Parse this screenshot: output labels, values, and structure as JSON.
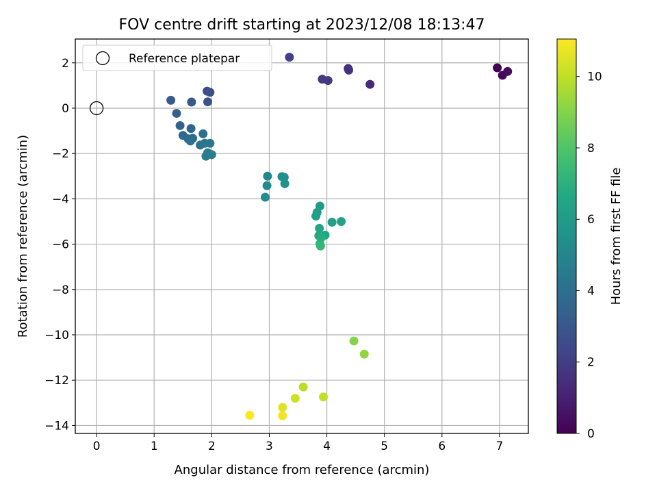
{
  "chart_data": {
    "type": "scatter",
    "title": "FOV centre drift starting at 2023/12/08 18:13:47",
    "xlabel": "Angular distance from reference (arcmin)",
    "ylabel": "Rotation from reference (arcmin)",
    "xlim": [
      -0.37,
      7.5
    ],
    "ylim": [
      -14.35,
      3.05
    ],
    "xticks": [
      0,
      1,
      2,
      3,
      4,
      5,
      6,
      7
    ],
    "yticks": [
      2,
      0,
      -2,
      -4,
      -6,
      -8,
      -10,
      -12,
      -14
    ],
    "grid": true,
    "legend": {
      "placement": "top-left",
      "entries": [
        "Reference platepar"
      ]
    },
    "reference_point": {
      "name": "Reference platepar",
      "x": 0,
      "y": 0,
      "marker": "open-circle"
    },
    "colorbar": {
      "label": "Hours from first FF file",
      "colormap": "viridis",
      "range": [
        0,
        11.05
      ],
      "ticks": [
        0,
        2,
        4,
        6,
        8,
        10
      ]
    },
    "series": [
      {
        "points": [
          {
            "x": 6.96,
            "y": 1.78,
            "c": 0.0
          },
          {
            "x": 7.05,
            "y": 1.45,
            "c": 0.2
          },
          {
            "x": 7.14,
            "y": 1.62,
            "c": 0.4
          },
          {
            "x": 4.75,
            "y": 1.05,
            "c": 1.3
          },
          {
            "x": 4.37,
            "y": 1.75,
            "c": 1.5
          },
          {
            "x": 4.38,
            "y": 1.68,
            "c": 1.6
          },
          {
            "x": 4.02,
            "y": 1.22,
            "c": 1.8
          },
          {
            "x": 3.92,
            "y": 1.28,
            "c": 1.9
          },
          {
            "x": 3.35,
            "y": 2.25,
            "c": 2.1
          },
          {
            "x": 1.92,
            "y": 0.75,
            "c": 2.5
          },
          {
            "x": 1.97,
            "y": 0.7,
            "c": 2.6
          },
          {
            "x": 1.93,
            "y": 0.28,
            "c": 2.8
          },
          {
            "x": 1.65,
            "y": 0.27,
            "c": 3.0
          },
          {
            "x": 1.29,
            "y": 0.35,
            "c": 3.1
          },
          {
            "x": 1.39,
            "y": -0.23,
            "c": 3.3
          },
          {
            "x": 1.45,
            "y": -0.77,
            "c": 3.5
          },
          {
            "x": 1.64,
            "y": -0.9,
            "c": 3.6
          },
          {
            "x": 1.5,
            "y": -1.2,
            "c": 3.7
          },
          {
            "x": 1.59,
            "y": -1.35,
            "c": 3.8
          },
          {
            "x": 1.67,
            "y": -1.33,
            "c": 3.9
          },
          {
            "x": 1.63,
            "y": -1.45,
            "c": 4.0
          },
          {
            "x": 1.85,
            "y": -1.13,
            "c": 4.1
          },
          {
            "x": 1.8,
            "y": -1.63,
            "c": 4.2
          },
          {
            "x": 1.88,
            "y": -1.55,
            "c": 4.3
          },
          {
            "x": 1.97,
            "y": -1.55,
            "c": 4.4
          },
          {
            "x": 1.93,
            "y": -1.97,
            "c": 4.5
          },
          {
            "x": 1.9,
            "y": -2.12,
            "c": 4.6
          },
          {
            "x": 2.0,
            "y": -2.05,
            "c": 4.7
          },
          {
            "x": 2.97,
            "y": -3.0,
            "c": 5.1
          },
          {
            "x": 2.96,
            "y": -3.42,
            "c": 5.2
          },
          {
            "x": 2.93,
            "y": -3.93,
            "c": 5.3
          },
          {
            "x": 3.22,
            "y": -3.02,
            "c": 5.4
          },
          {
            "x": 3.26,
            "y": -3.05,
            "c": 5.5
          },
          {
            "x": 3.27,
            "y": -3.33,
            "c": 5.6
          },
          {
            "x": 3.88,
            "y": -4.32,
            "c": 6.0
          },
          {
            "x": 3.83,
            "y": -4.6,
            "c": 6.1
          },
          {
            "x": 3.81,
            "y": -4.76,
            "c": 6.2
          },
          {
            "x": 4.09,
            "y": -5.03,
            "c": 6.3
          },
          {
            "x": 4.25,
            "y": -5.0,
            "c": 6.4
          },
          {
            "x": 3.87,
            "y": -5.3,
            "c": 6.5
          },
          {
            "x": 3.97,
            "y": -5.6,
            "c": 6.6
          },
          {
            "x": 3.86,
            "y": -5.63,
            "c": 6.7
          },
          {
            "x": 3.9,
            "y": -5.72,
            "c": 6.8
          },
          {
            "x": 3.88,
            "y": -5.98,
            "c": 7.0
          },
          {
            "x": 3.89,
            "y": -6.08,
            "c": 7.3
          },
          {
            "x": 4.47,
            "y": -10.27,
            "c": 9.0
          },
          {
            "x": 4.65,
            "y": -10.85,
            "c": 9.2
          },
          {
            "x": 3.59,
            "y": -12.3,
            "c": 9.9
          },
          {
            "x": 3.94,
            "y": -12.74,
            "c": 10.0
          },
          {
            "x": 3.45,
            "y": -12.8,
            "c": 10.2
          },
          {
            "x": 3.23,
            "y": -13.2,
            "c": 10.5
          },
          {
            "x": 3.23,
            "y": -13.57,
            "c": 10.8
          },
          {
            "x": 2.66,
            "y": -13.55,
            "c": 11.0
          }
        ]
      }
    ]
  }
}
